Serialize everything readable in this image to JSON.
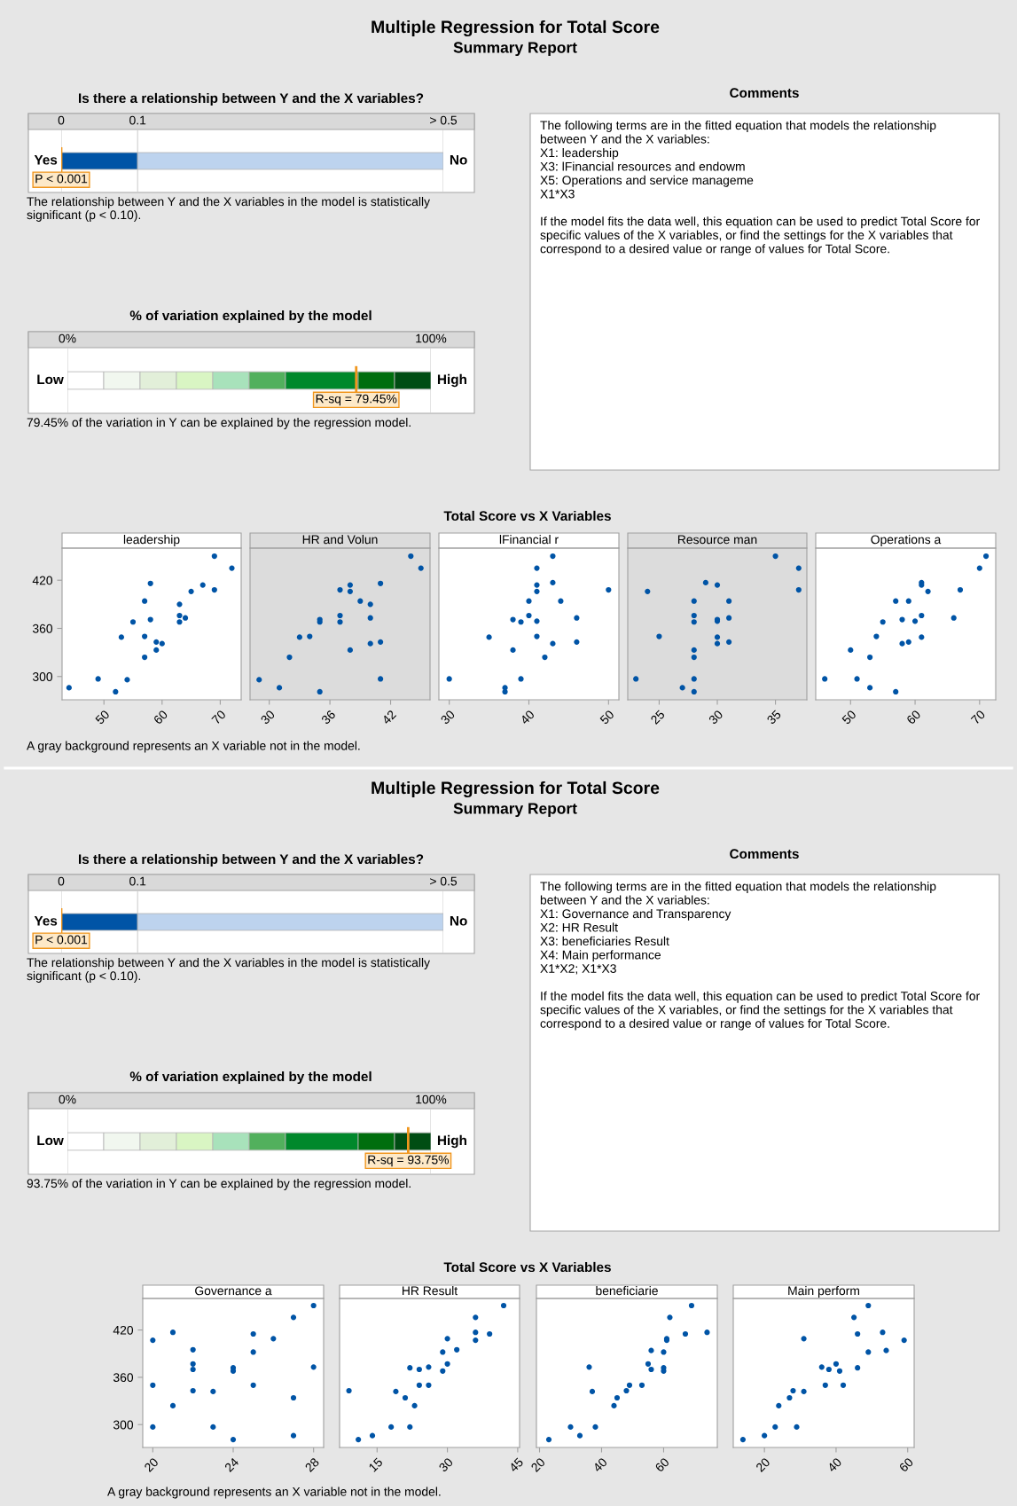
{
  "chart_data": [
    {
      "type": "other",
      "title": "Multiple Regression for Total Score",
      "subtitle": "Summary Report"
    },
    {
      "type": "bar",
      "title": "Is there a relationship between Y and the X variables?",
      "orientation": "horizontal",
      "stacked": true,
      "categories": [
        null
      ],
      "xlim": [
        0,
        0.5
      ],
      "xticks": [
        0,
        0.1,
        {
          "value": 0.5,
          "label": "> 0.5"
        }
      ],
      "grid": "x",
      "series": [
        {
          "color": "#0054a6",
          "values": [
            0.1
          ]
        },
        {
          "color": "#bdd3ee",
          "values": [
            0.4
          ]
        }
      ],
      "ref_lines": [
        {
          "axis": "x",
          "value": 0,
          "label": "P < 0.001",
          "color": "#f0961e"
        }
      ],
      "annotations": [
        "Yes",
        "No",
        "The relationship between Y and the X variables in the model is statistically significant (p < 0.10)."
      ]
    },
    {
      "type": "bar",
      "title": "% of variation explained by the model",
      "orientation": "horizontal",
      "stacked": true,
      "categories": [
        null
      ],
      "xlim": [
        0,
        100
      ],
      "xticks": [
        {
          "value": 0,
          "label": "0%"
        },
        {
          "value": 100,
          "label": "100%"
        }
      ],
      "grid": "x",
      "series": [
        {
          "color": "#ffffff",
          "values": [
            10
          ]
        },
        {
          "color": "#f1f7ef",
          "values": [
            10
          ]
        },
        {
          "color": "#e2efd9",
          "values": [
            10
          ]
        },
        {
          "color": "#d9f5c3",
          "values": [
            10
          ]
        },
        {
          "color": "#a8e2bb",
          "values": [
            10
          ]
        },
        {
          "color": "#52b05d",
          "values": [
            10
          ]
        },
        {
          "color": "#00882b",
          "values": [
            20
          ]
        },
        {
          "color": "#006e0e",
          "values": [
            10
          ]
        },
        {
          "color": "#004d13",
          "values": [
            10
          ]
        }
      ],
      "ref_lines": [
        {
          "axis": "x",
          "value": 79.45,
          "label": "R-sq = 79.45%",
          "color": "#f0961e"
        }
      ],
      "annotations": [
        "Low",
        "High",
        "79.45% of the variation in Y can be explained by the regression model."
      ]
    },
    {
      "type": "other",
      "title": "Comments",
      "annotations": [
        "The following terms are in the fitted equation that models the relationship between Y and the X variables:\nX1: leadership\nX3: lFinancial resources and endowm\nX5: Operations and service manageme\nX1*X3",
        "If the model fits the data well, this equation can be used to predict Total Score for specific values of the X variables, or find the settings for the X variables that correspond to a desired value or range of values for Total Score."
      ]
    },
    {
      "type": "other",
      "title": "Total Score vs X Variables",
      "annotations": [
        "A gray background represents an X variable not in the model."
      ]
    },
    {
      "type": "scatter",
      "title": "leadership",
      "color": "#0054a6",
      "marker": "circle",
      "xlim": [
        42.8,
        73.6
      ],
      "xticks": [
        50,
        60,
        70
      ],
      "ylim": [
        271,
        460
      ],
      "yticks": [
        300,
        360,
        420
      ],
      "x": [
        44,
        49,
        52,
        54,
        53,
        55,
        57,
        57,
        57,
        58,
        58,
        59,
        59,
        60,
        63,
        63,
        63,
        64,
        65,
        67,
        69,
        69,
        72
      ],
      "values": [
        286,
        297,
        281,
        296,
        349,
        368,
        394,
        350,
        324,
        416,
        371,
        343,
        333,
        341,
        390,
        376,
        368,
        373,
        406,
        414,
        450,
        408,
        435
      ]
    },
    {
      "type": "scatter",
      "title": "HR and Volun",
      "color": "#0054a6",
      "marker": "circle",
      "xlim": [
        28.1,
        45.9
      ],
      "xticks": [
        30,
        36,
        42
      ],
      "ylim": [
        271,
        460
      ],
      "yticks": [
        300,
        360,
        420
      ],
      "tick_labels": "x",
      "bands": [
        {
          "axis": "x",
          "from": 28.1,
          "to": 45.9,
          "color": "#dcdcdc"
        }
      ],
      "x": [
        29,
        31,
        32,
        33,
        34,
        35,
        35,
        35,
        37,
        37,
        37,
        38,
        38,
        38,
        39,
        40,
        40,
        40,
        41,
        41,
        41,
        44,
        45
      ],
      "values": [
        296,
        286,
        324,
        349,
        350,
        281,
        371,
        368,
        408,
        376,
        368,
        414,
        406,
        333,
        394,
        390,
        373,
        341,
        416,
        343,
        297,
        450,
        435
      ]
    },
    {
      "type": "scatter",
      "title": "lFinancial r",
      "color": "#0054a6",
      "marker": "circle",
      "xlim": [
        28.7,
        51.3
      ],
      "xticks": [
        30,
        40,
        50
      ],
      "ylim": [
        271,
        460
      ],
      "yticks": [
        300,
        360,
        420
      ],
      "tick_labels": "x",
      "x": [
        30,
        35,
        37,
        37,
        38,
        38,
        39,
        39,
        40,
        40,
        41,
        41,
        41,
        41,
        41,
        42,
        43,
        43,
        43,
        44,
        46,
        46,
        50
      ],
      "values": [
        297,
        349,
        286,
        281,
        371,
        333,
        368,
        297,
        394,
        376,
        435,
        414,
        406,
        369,
        350,
        324,
        450,
        417,
        341,
        394,
        373,
        343,
        408
      ]
    },
    {
      "type": "scatter",
      "title": "Resource man",
      "color": "#0054a6",
      "marker": "circle",
      "xlim": [
        22.3,
        37.7
      ],
      "xticks": [
        25,
        30,
        35
      ],
      "ylim": [
        271,
        460
      ],
      "yticks": [
        300,
        360,
        420
      ],
      "tick_labels": "x",
      "bands": [
        {
          "axis": "x",
          "from": 22.3,
          "to": 37.7,
          "color": "#dcdcdc"
        }
      ],
      "x": [
        23,
        24,
        25,
        27,
        28,
        28,
        28,
        28,
        28,
        28,
        28,
        29,
        30,
        30,
        30,
        30,
        30,
        31,
        31,
        31,
        35,
        37,
        37
      ],
      "values": [
        297,
        406,
        350,
        286,
        394,
        376,
        368,
        333,
        324,
        297,
        281,
        417,
        414,
        371,
        369,
        349,
        341,
        394,
        373,
        343,
        450,
        435,
        408
      ]
    },
    {
      "type": "scatter",
      "title": "Operations a",
      "color": "#0054a6",
      "marker": "circle",
      "xlim": [
        44.6,
        72.5
      ],
      "xticks": [
        50,
        60,
        70
      ],
      "ylim": [
        271,
        460
      ],
      "yticks": [
        300,
        360,
        420
      ],
      "tick_labels": "x",
      "x": [
        46,
        50,
        51,
        53,
        53,
        54,
        55,
        57,
        57,
        58,
        58,
        59,
        59,
        60,
        61,
        61,
        61,
        61,
        62,
        66,
        67,
        70,
        71
      ],
      "values": [
        297,
        333,
        297,
        324,
        286,
        350,
        368,
        394,
        281,
        371,
        341,
        394,
        343,
        369,
        417,
        414,
        376,
        349,
        406,
        373,
        408,
        435,
        450
      ]
    },
    {
      "type": "other",
      "title": "Multiple Regression for Total Score",
      "subtitle": "Summary Report"
    },
    {
      "type": "bar",
      "title": "Is there a relationship between Y and the X variables?",
      "orientation": "horizontal",
      "stacked": true,
      "categories": [
        null
      ],
      "xlim": [
        0,
        0.5
      ],
      "xticks": [
        0,
        0.1,
        {
          "value": 0.5,
          "label": "> 0.5"
        }
      ],
      "grid": "x",
      "series": [
        {
          "color": "#0054a6",
          "values": [
            0.1
          ]
        },
        {
          "color": "#bdd3ee",
          "values": [
            0.4
          ]
        }
      ],
      "ref_lines": [
        {
          "axis": "x",
          "value": 0,
          "label": "P < 0.001",
          "color": "#f0961e"
        }
      ],
      "annotations": [
        "Yes",
        "No",
        "The relationship between Y and the X variables in the model is statistically significant (p < 0.10)."
      ]
    },
    {
      "type": "bar",
      "title": "% of variation explained by the model",
      "orientation": "horizontal",
      "stacked": true,
      "categories": [
        null
      ],
      "xlim": [
        0,
        100
      ],
      "xticks": [
        {
          "value": 0,
          "label": "0%"
        },
        {
          "value": 100,
          "label": "100%"
        }
      ],
      "grid": "x",
      "series": [
        {
          "color": "#ffffff",
          "values": [
            10
          ]
        },
        {
          "color": "#f1f7ef",
          "values": [
            10
          ]
        },
        {
          "color": "#e2efd9",
          "values": [
            10
          ]
        },
        {
          "color": "#d9f5c3",
          "values": [
            10
          ]
        },
        {
          "color": "#a8e2bb",
          "values": [
            10
          ]
        },
        {
          "color": "#52b05d",
          "values": [
            10
          ]
        },
        {
          "color": "#00882b",
          "values": [
            20
          ]
        },
        {
          "color": "#006e0e",
          "values": [
            10
          ]
        },
        {
          "color": "#004d13",
          "values": [
            10
          ]
        }
      ],
      "ref_lines": [
        {
          "axis": "x",
          "value": 93.75,
          "label": "R-sq = 93.75%",
          "color": "#f0961e"
        }
      ],
      "annotations": [
        "Low",
        "High",
        "93.75% of the variation in Y can be explained by the regression model."
      ]
    },
    {
      "type": "other",
      "title": "Comments",
      "annotations": [
        "The following terms are in the fitted equation that models the relationship between Y and the X variables:\nX1: Governance and Transparency\nX2: HR Result\nX3: beneficiaries Result\nX4: Main performance\nX1*X2; X1*X3",
        "If the model fits the data well, this equation can be used to predict Total Score for specific values of the X variables, or find the settings for the X variables that correspond to a desired value or range of values for Total Score."
      ]
    },
    {
      "type": "other",
      "title": "Total Score vs X Variables",
      "annotations": [
        "A gray background represents an X variable not in the model."
      ]
    },
    {
      "type": "scatter",
      "title": "Governance a",
      "color": "#0054a6",
      "marker": "circle",
      "xlim": [
        19.5,
        28.5
      ],
      "xticks": [
        20,
        24,
        28
      ],
      "ylim": [
        271,
        460
      ],
      "yticks": [
        300,
        360,
        420
      ],
      "x": [
        20,
        20,
        20,
        21,
        21,
        22,
        22,
        22,
        22,
        23,
        23,
        24,
        24,
        24,
        25,
        25,
        25,
        26,
        27,
        27,
        27,
        28,
        28
      ],
      "values": [
        407,
        350,
        297,
        417,
        324,
        395,
        377,
        370,
        343,
        342,
        297,
        372,
        368,
        281,
        415,
        392,
        350,
        409,
        436,
        334,
        286,
        451,
        373
      ]
    },
    {
      "type": "scatter",
      "title": "HR Result",
      "color": "#0054a6",
      "marker": "circle",
      "xlim": [
        7,
        45.4
      ],
      "xticks": [
        15,
        30,
        45
      ],
      "ylim": [
        271,
        460
      ],
      "yticks": [
        300,
        360,
        420
      ],
      "tick_labels": "x",
      "x": [
        9,
        11,
        14,
        18,
        19,
        21,
        22,
        22,
        23,
        24,
        24,
        26,
        26,
        29,
        29,
        30,
        30,
        32,
        36,
        36,
        36,
        39,
        42
      ],
      "values": [
        343,
        281,
        286,
        297,
        342,
        334,
        372,
        297,
        324,
        370,
        350,
        373,
        350,
        392,
        368,
        409,
        377,
        395,
        436,
        417,
        407,
        415,
        451
      ]
    },
    {
      "type": "scatter",
      "title": "beneficiarie",
      "color": "#0054a6",
      "marker": "circle",
      "xlim": [
        19,
        77.3
      ],
      "xticks": [
        20,
        40,
        60
      ],
      "ylim": [
        271,
        460
      ],
      "yticks": [
        300,
        360,
        420
      ],
      "tick_labels": "x",
      "x": [
        23,
        30,
        33,
        36,
        37,
        38,
        44,
        45,
        48,
        49,
        53,
        55,
        56,
        56,
        60,
        60,
        60,
        61,
        61,
        62,
        67,
        69,
        74
      ],
      "values": [
        281,
        297,
        286,
        373,
        342,
        297,
        324,
        334,
        343,
        350,
        350,
        377,
        394,
        370,
        392,
        372,
        368,
        409,
        407,
        436,
        415,
        451,
        417
      ]
    },
    {
      "type": "scatter",
      "title": "Main perform",
      "color": "#0054a6",
      "marker": "circle",
      "xlim": [
        11.3,
        61.8
      ],
      "xticks": [
        20,
        40,
        60
      ],
      "ylim": [
        271,
        460
      ],
      "yticks": [
        300,
        360,
        420
      ],
      "tick_labels": "x",
      "x": [
        14,
        20,
        23,
        24,
        27,
        28,
        29,
        31,
        31,
        36,
        37,
        38,
        40,
        41,
        42,
        45,
        46,
        46,
        49,
        49,
        53,
        54,
        59
      ],
      "values": [
        281,
        286,
        297,
        324,
        334,
        343,
        297,
        409,
        342,
        373,
        350,
        370,
        377,
        368,
        350,
        436,
        415,
        372,
        451,
        392,
        417,
        394,
        407
      ]
    }
  ]
}
